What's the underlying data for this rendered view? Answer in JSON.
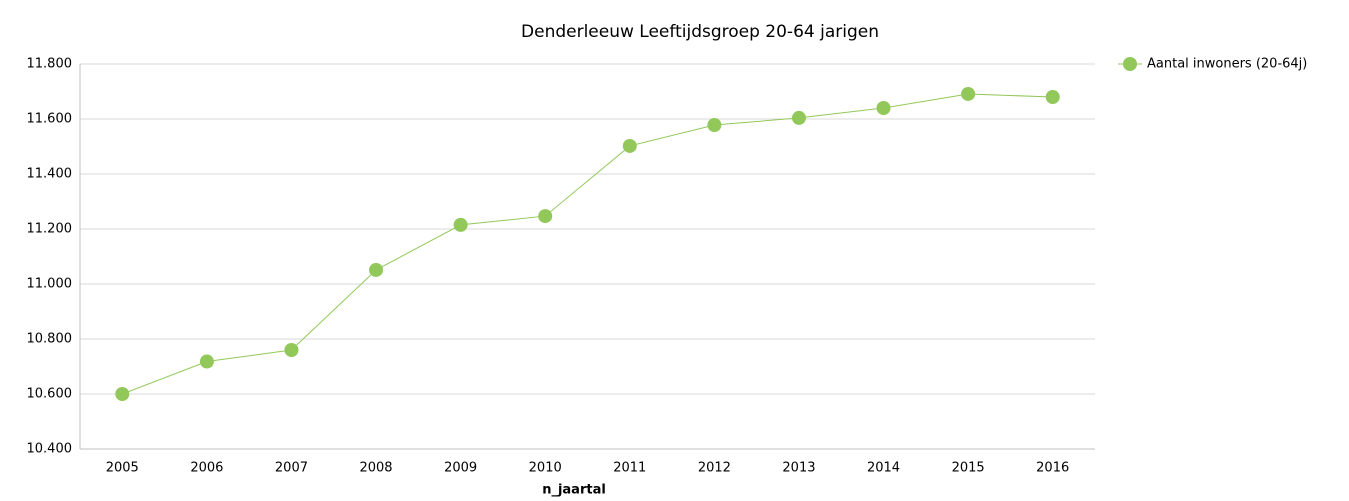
{
  "chart_data": {
    "type": "line",
    "title": "Denderleeuw  Leeftijdsgroep 20-64 jarigen",
    "x_label": "n_jaartal",
    "categories": [
      "2005",
      "2006",
      "2007",
      "2008",
      "2009",
      "2010",
      "2011",
      "2012",
      "2013",
      "2014",
      "2015",
      "2016"
    ],
    "series": [
      {
        "name": "Aantal inwoners  (20-64j)",
        "color": "#92c85a",
        "values": [
          10600,
          10718,
          10760,
          11051,
          11215,
          11247,
          11502,
          11578,
          11604,
          11640,
          11691,
          11680
        ]
      }
    ],
    "ylim": [
      10400,
      11800
    ],
    "yticks": [
      {
        "value": 10400,
        "label": "10.400"
      },
      {
        "value": 10600,
        "label": "10.600"
      },
      {
        "value": 10800,
        "label": "10.800"
      },
      {
        "value": 11000,
        "label": "11.000"
      },
      {
        "value": 11200,
        "label": "11.200"
      },
      {
        "value": 11400,
        "label": "11.400"
      },
      {
        "value": 11600,
        "label": "11.600"
      },
      {
        "value": 11800,
        "label": "11.800"
      }
    ],
    "grid": true,
    "legend": "top-right"
  }
}
